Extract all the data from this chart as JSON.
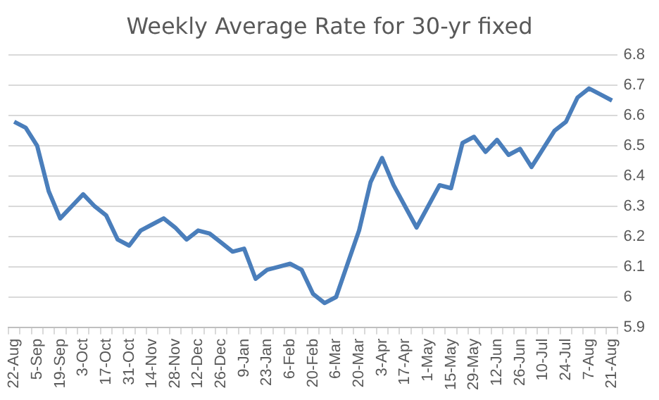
{
  "chart_data": {
    "type": "line",
    "title": "Weekly Average Rate for 30-yr fixed",
    "categories": [
      "22-Aug",
      null,
      "5-Sep",
      null,
      "19-Sep",
      null,
      "3-Oct",
      null,
      "17-Oct",
      null,
      "31-Oct",
      null,
      "14-Nov",
      null,
      "28-Nov",
      null,
      "12-Dec",
      null,
      "26-Dec",
      null,
      "9-Jan",
      null,
      "23-Jan",
      null,
      "6-Feb",
      null,
      "20-Feb",
      null,
      "6-Mar",
      null,
      "20-Mar",
      null,
      "3-Apr",
      null,
      "17-Apr",
      null,
      "1-May",
      null,
      "15-May",
      null,
      "29-May",
      null,
      "12-Jun",
      null,
      "26-Jun",
      null,
      "10-Jul",
      null,
      "24-Jul",
      null,
      "7-Aug",
      null,
      "21-Aug"
    ],
    "series": [
      {
        "color": "#4a7ebb",
        "values": [
          6.58,
          6.56,
          6.5,
          6.35,
          6.26,
          6.3,
          6.34,
          6.3,
          6.27,
          6.19,
          6.17,
          6.22,
          6.24,
          6.26,
          6.23,
          6.19,
          6.22,
          6.21,
          6.18,
          6.15,
          6.16,
          6.06,
          6.09,
          6.1,
          6.11,
          6.09,
          6.01,
          5.98,
          6.0,
          6.11,
          6.22,
          6.38,
          6.46,
          6.37,
          6.3,
          6.23,
          6.3,
          6.37,
          6.36,
          6.51,
          6.53,
          6.48,
          6.52,
          6.47,
          6.49,
          6.43,
          6.49,
          6.55,
          6.58,
          6.66,
          6.69,
          6.67,
          6.65
        ]
      }
    ],
    "ylim": [
      5.9,
      6.8
    ],
    "yticks": [
      5.9,
      6,
      6.1,
      6.2,
      6.3,
      6.4,
      6.5,
      6.6,
      6.7,
      6.8
    ],
    "grid": "y",
    "legend": false,
    "marker": "none",
    "line_style": "solid"
  }
}
